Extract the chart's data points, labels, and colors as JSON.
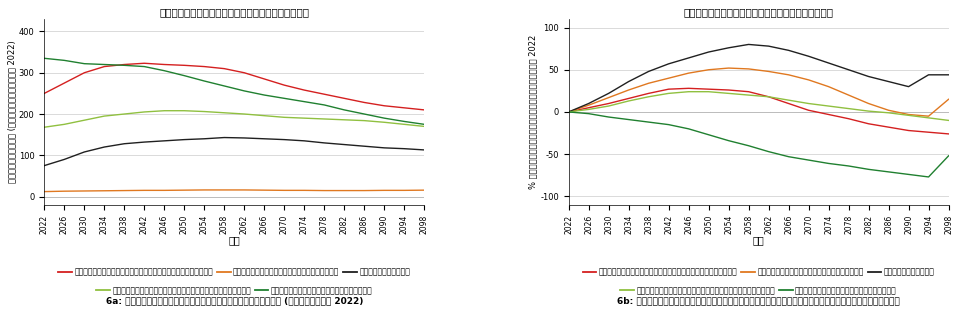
{
  "title": "ระดับรายรับรายจ่ายภาครัฐ",
  "years": [
    2022,
    2026,
    2030,
    2034,
    2038,
    2042,
    2046,
    2050,
    2054,
    2058,
    2062,
    2066,
    2070,
    2074,
    2078,
    2082,
    2086,
    2090,
    2094,
    2098
  ],
  "left": {
    "ylabel": "พันล้านบาท (มูลค่าจริงปี 2022)",
    "xlabel": "ปี",
    "ylim": [
      -20,
      430
    ],
    "yticks": [
      0,
      100,
      200,
      300,
      400
    ],
    "series": [
      {
        "label": "เบี้ยหวัดบำเหน็จบำนาญข้าราชการ",
        "color": "#d42020",
        "values": [
          250,
          275,
          300,
          315,
          320,
          323,
          320,
          318,
          315,
          310,
          300,
          285,
          270,
          258,
          248,
          238,
          228,
          220,
          215,
          210
        ]
      },
      {
        "label": "ค่ารักษาพยาบาลข้าราชการ",
        "color": "#e07820",
        "values": [
          12,
          13,
          13.5,
          14,
          14.5,
          15,
          15,
          15.5,
          16,
          16,
          16,
          15.5,
          15,
          15,
          14.5,
          14.5,
          14.5,
          15,
          15,
          15.5
        ]
      },
      {
        "label": "เบี้ยยังชีพ",
        "color": "#202020",
        "values": [
          75,
          90,
          108,
          120,
          128,
          132,
          135,
          138,
          140,
          143,
          142,
          140,
          138,
          135,
          130,
          126,
          122,
          118,
          116,
          113
        ]
      },
      {
        "label": "กองทุนหลักประกันสุขภาพแห่งชาติ",
        "color": "#90c040",
        "values": [
          168,
          175,
          185,
          195,
          200,
          205,
          208,
          208,
          206,
          203,
          200,
          196,
          192,
          190,
          188,
          186,
          184,
          180,
          175,
          170
        ]
      },
      {
        "label": "ภาษีเงินได้บุคคลธรรมดา",
        "color": "#208030",
        "values": [
          335,
          330,
          322,
          320,
          318,
          315,
          305,
          293,
          280,
          268,
          256,
          246,
          238,
          230,
          222,
          210,
          200,
          190,
          182,
          175
        ]
      }
    ]
  },
  "right": {
    "ylabel": "% การเปลี่ยนแปลงเทียบกับปี 2022",
    "xlabel": "ปี",
    "ylim": [
      -110,
      110
    ],
    "yticks": [
      -100,
      -50,
      0,
      50,
      100
    ],
    "series": [
      {
        "label": "เบี้ยหวัดบำเหน็จบำนาญข้าราชการ",
        "color": "#d42020",
        "values": [
          0,
          5,
          10,
          16,
          22,
          27,
          28,
          27,
          26,
          24,
          18,
          10,
          2,
          -3,
          -8,
          -14,
          -18,
          -22,
          -24,
          -26
        ]
      },
      {
        "label": "ค่ารักษาพยาบาลข้าราชการ",
        "color": "#e07820",
        "values": [
          0,
          8,
          17,
          26,
          34,
          40,
          46,
          50,
          52,
          51,
          48,
          44,
          38,
          30,
          20,
          10,
          2,
          -3,
          -5,
          15
        ]
      },
      {
        "label": "เบี้ยยังชีพ",
        "color": "#202020",
        "values": [
          0,
          10,
          22,
          36,
          48,
          57,
          64,
          71,
          76,
          80,
          78,
          73,
          66,
          58,
          50,
          42,
          36,
          30,
          44,
          44
        ]
      },
      {
        "label": "กองทุนหลักประกันสุขภาพแห่งชาติ",
        "color": "#90c040",
        "values": [
          0,
          3,
          7,
          13,
          18,
          22,
          24,
          24,
          22,
          20,
          18,
          14,
          10,
          7,
          4,
          1,
          -1,
          -4,
          -7,
          -10
        ]
      },
      {
        "label": "ภาษีเงินได้บุคคลธรรมดา",
        "color": "#208030",
        "values": [
          0,
          -2,
          -6,
          -9,
          -12,
          -15,
          -20,
          -27,
          -34,
          -40,
          -47,
          -53,
          -57,
          -61,
          -64,
          -68,
          -71,
          -74,
          -77,
          -52
        ]
      }
    ]
  },
  "caption_left": "6a: มูลค่ารายรับรายจ่ายที่แท้จริง (มูลค่าปี 2022)",
  "caption_right": "6b: อัตราการขยายตัวของรายรับรายจ่ายในมูลค่าที่แท้จริง"
}
